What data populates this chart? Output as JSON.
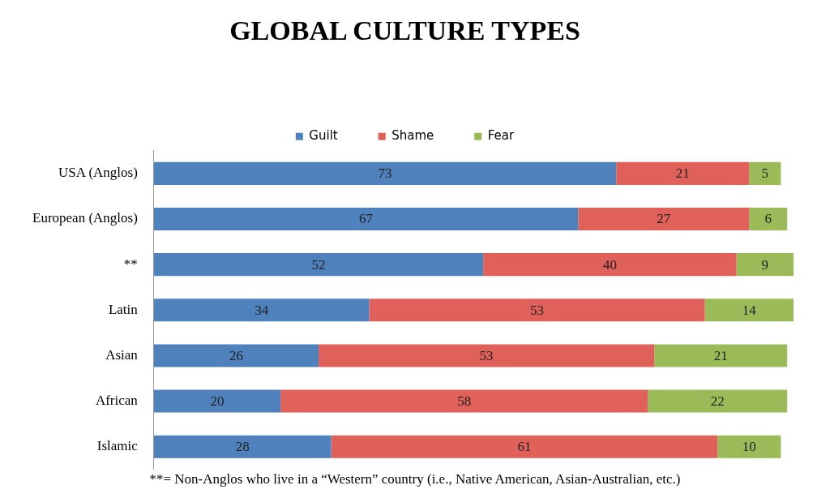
{
  "chart_data": {
    "type": "bar",
    "orientation": "horizontal",
    "stacked": true,
    "title": "GLOBAL CULTURE TYPES",
    "categories": [
      "USA (Anglos)",
      "European (Anglos)",
      "**",
      "Latin",
      "Asian",
      "African",
      "Islamic"
    ],
    "series": [
      {
        "name": "Guilt",
        "color": "#4f81bd",
        "values": [
          73,
          67,
          52,
          34,
          26,
          20,
          28
        ]
      },
      {
        "name": "Shame",
        "color": "#e0605a",
        "values": [
          21,
          27,
          40,
          53,
          53,
          58,
          61
        ]
      },
      {
        "name": "Fear",
        "color": "#9bbb59",
        "values": [
          5,
          6,
          9,
          14,
          21,
          22,
          10
        ]
      }
    ],
    "data_labels": true,
    "legend": "top",
    "grid": false,
    "tick_labels": "y",
    "annotations": [
      "**= Non-Anglos who live in a “Western” country (i.e., Native American, Asian-Australian, etc.)"
    ]
  }
}
